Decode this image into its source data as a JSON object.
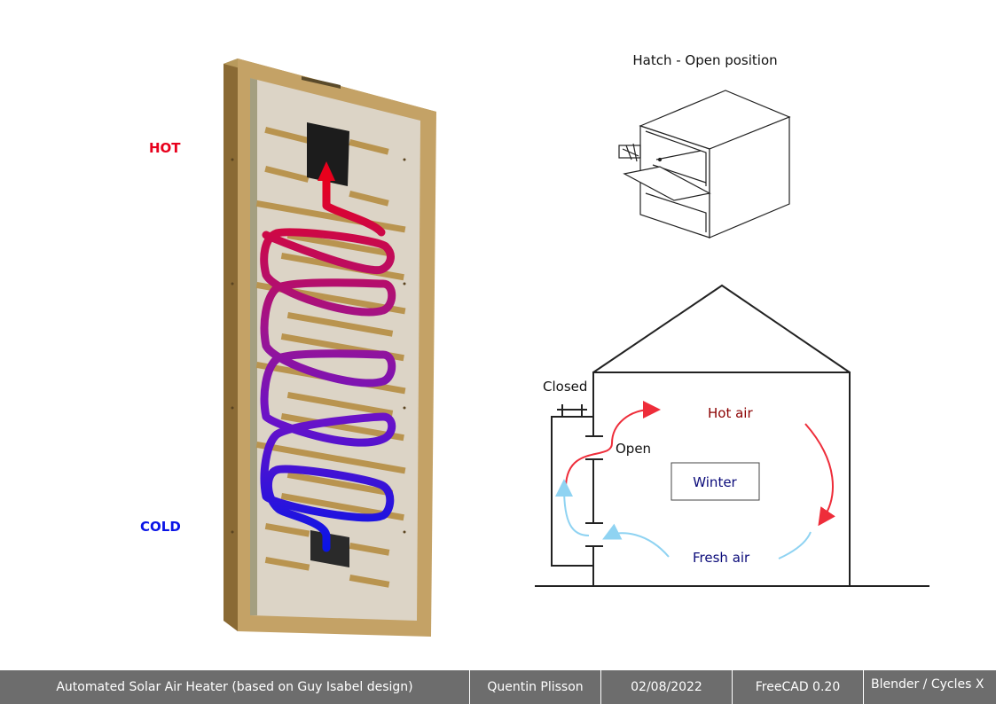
{
  "labels": {
    "hot": "HOT",
    "cold": "COLD",
    "hatch_title": "Hatch - Open position",
    "closed": "Closed",
    "open": "Open",
    "hot_air": "Hot air",
    "fresh_air": "Fresh air",
    "winter": "Winter"
  },
  "colors": {
    "hot": "#e8001c",
    "cold": "#0a14e6",
    "hot_air_arrow": "#ee2d3a",
    "fresh_air_arrow": "#8fd3f2",
    "hot_air_text": "#8b0000",
    "blue_text": "#0b0b7a",
    "footer_bg": "#6d6d6d"
  },
  "footer": {
    "title": "Automated Solar Air Heater (based on Guy Isabel design)",
    "author": "Quentin Plisson",
    "date": "02/08/2022",
    "cad": "FreeCAD 0.20",
    "renderer": "Blender / Cycles X"
  }
}
